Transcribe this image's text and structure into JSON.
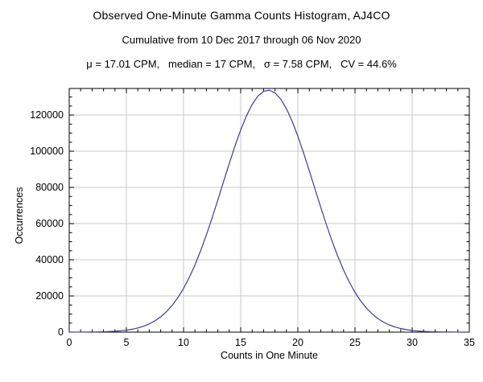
{
  "chart_data": {
    "type": "line",
    "title": "Observed One-Minute Gamma Counts Histogram, AJ4CO",
    "subtitle": "Cumulative from 10 Dec 2017 through 06 Nov 2020",
    "stats_line": "μ = 17.01 CPM,   median = 17 CPM,   σ = 7.58 CPM,   CV = 44.6%",
    "xlabel": "Counts in One Minute",
    "ylabel": "Occurrences",
    "xlim": [
      0,
      35
    ],
    "ylim": [
      0,
      134700
    ],
    "x_ticks": [
      0,
      5,
      10,
      15,
      20,
      25,
      30,
      35
    ],
    "y_ticks": [
      0,
      20000,
      40000,
      60000,
      80000,
      100000,
      120000
    ],
    "x_minor_step": 1,
    "y_minor_step": 5000,
    "grid": true,
    "legend_position": "none",
    "line_color": "#3c3c96",
    "grid_color": "#c8c8c8",
    "frame_color": "#000000",
    "stats": {
      "mean_cpm": 17.01,
      "median_cpm": 17,
      "sigma_cpm": 7.58,
      "cv_percent": 44.6
    },
    "series": [
      {
        "name": "occurrences",
        "x": [
          0,
          0.5,
          1,
          1.5,
          2,
          2.5,
          3,
          3.5,
          4,
          4.5,
          5,
          5.5,
          6,
          6.5,
          7,
          7.5,
          8,
          8.5,
          9,
          9.5,
          10,
          10.5,
          11,
          11.5,
          12,
          12.5,
          13,
          13.5,
          14,
          14.5,
          15,
          15.5,
          16,
          16.5,
          17,
          17.5,
          18,
          18.5,
          19,
          19.5,
          20,
          20.5,
          21,
          21.5,
          22,
          22.5,
          23,
          23.5,
          24,
          24.5,
          25,
          25.5,
          26,
          26.5,
          27,
          27.5,
          28,
          28.5,
          29,
          29.5,
          30,
          30.5,
          31,
          31.5,
          32,
          32.5,
          33,
          33.5,
          34,
          34.5,
          35
        ],
        "y": [
          10,
          18,
          30,
          50,
          81,
          130,
          205,
          318,
          490,
          738,
          1094,
          1600,
          2300,
          3264,
          4550,
          6257,
          8452,
          11237,
          14742,
          19035,
          24172,
          30221,
          37106,
          45080,
          53788,
          63190,
          73060,
          83200,
          93230,
          102860,
          111760,
          119500,
          125850,
          130450,
          133130,
          133760,
          132300,
          128830,
          123510,
          116580,
          108320,
          99090,
          89240,
          79130,
          69070,
          59350,
          50220,
          41830,
          34290,
          27680,
          22010,
          17220,
          13270,
          10060,
          7510,
          5510,
          4000,
          2850,
          1990,
          1380,
          937,
          626,
          413,
          268,
          171,
          108,
          67,
          41,
          24,
          14,
          8
        ]
      }
    ]
  }
}
